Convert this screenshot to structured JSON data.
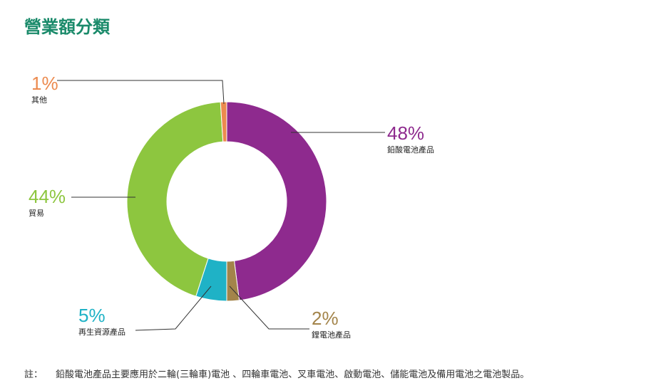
{
  "chart_data": {
    "type": "donut",
    "title": "營業額分類",
    "categories": [
      "鉛酸電池產品",
      "鋰電池產品",
      "再生資源產品",
      "貿易",
      "其他"
    ],
    "values": [
      48,
      2,
      5,
      44,
      1
    ],
    "value_labels": [
      "48%",
      "2%",
      "5%",
      "44%",
      "1%"
    ],
    "colors": [
      "#8e2a8e",
      "#a3844a",
      "#1fb2c6",
      "#8dc63f",
      "#ec8a4e"
    ],
    "note_label": "註：",
    "note": "鉛酸電池產品主要應用於二輪(三輪車)電池 、四輪車電池、叉車電池、啟動電池、儲能電池及備用電池之電池製品。"
  }
}
